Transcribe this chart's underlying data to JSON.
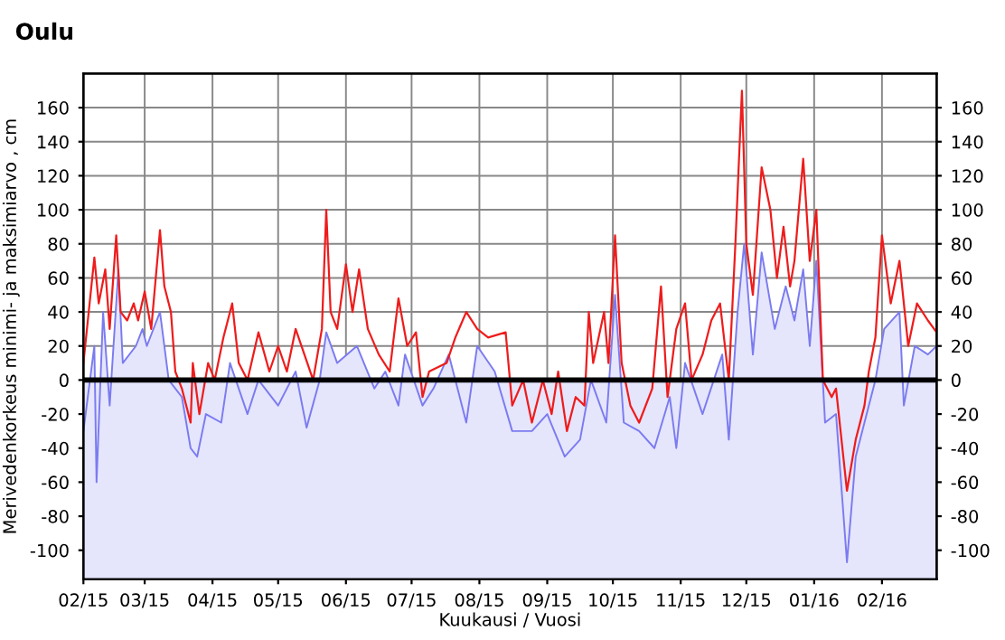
{
  "chart_data": {
    "type": "line",
    "title": "Oulu",
    "xlabel": "Kuukausi / Vuosi",
    "ylabel": "Merivedenkorkeus minimi- ja maksimiarvo , cm",
    "xlim": [
      "2015-02-01",
      "2016-02-26"
    ],
    "xticks": [
      {
        "value": "2015-02-01",
        "label": "02/15"
      },
      {
        "value": "2015-03-01",
        "label": "03/15"
      },
      {
        "value": "2015-04-01",
        "label": "04/15"
      },
      {
        "value": "2015-05-01",
        "label": "05/15"
      },
      {
        "value": "2015-06-01",
        "label": "06/15"
      },
      {
        "value": "2015-07-01",
        "label": "07/15"
      },
      {
        "value": "2015-08-01",
        "label": "08/15"
      },
      {
        "value": "2015-09-01",
        "label": "09/15"
      },
      {
        "value": "2015-10-01",
        "label": "10/15"
      },
      {
        "value": "2015-11-01",
        "label": "11/15"
      },
      {
        "value": "2015-12-01",
        "label": "12/15"
      },
      {
        "value": "2016-01-01",
        "label": "01/16"
      },
      {
        "value": "2016-02-01",
        "label": "02/16"
      }
    ],
    "ylim": [
      -117,
      180
    ],
    "yticks": [
      -100,
      -80,
      -60,
      -40,
      -20,
      0,
      20,
      40,
      60,
      80,
      100,
      120,
      140,
      160
    ],
    "y2lim": [
      -117,
      180
    ],
    "y2ticks": [
      -100,
      -80,
      -60,
      -40,
      -20,
      0,
      20,
      40,
      60,
      80,
      100,
      120,
      140,
      160
    ],
    "grid": true,
    "marker": "none",
    "line_style": "solid",
    "bands": [
      {
        "axis": "y",
        "from": -117,
        "to": 0,
        "label": null,
        "color": "#e5e5fc"
      }
    ],
    "ref_lines": [
      {
        "axis": "y",
        "value": 0,
        "label": null,
        "color": "#000000"
      }
    ],
    "series": [
      {
        "type": "area",
        "color": "#7b7bf0",
        "x": [
          "2015-02-01",
          "2015-02-04",
          "2015-02-06",
          "2015-02-07",
          "2015-02-10",
          "2015-02-13",
          "2015-02-17",
          "2015-02-19",
          "2015-02-25",
          "2015-02-28",
          "2015-03-02",
          "2015-03-08",
          "2015-03-12",
          "2015-03-18",
          "2015-03-22",
          "2015-03-25",
          "2015-03-29",
          "2015-04-05",
          "2015-04-09",
          "2015-04-17",
          "2015-04-22",
          "2015-05-01",
          "2015-05-09",
          "2015-05-14",
          "2015-05-20",
          "2015-05-23",
          "2015-05-28",
          "2015-06-06",
          "2015-06-14",
          "2015-06-19",
          "2015-06-25",
          "2015-06-28",
          "2015-07-06",
          "2015-07-11",
          "2015-07-18",
          "2015-07-26",
          "2015-07-31",
          "2015-08-08",
          "2015-08-16",
          "2015-08-25",
          "2015-09-01",
          "2015-09-09",
          "2015-09-16",
          "2015-09-21",
          "2015-09-28",
          "2015-10-02",
          "2015-10-06",
          "2015-10-13",
          "2015-10-20",
          "2015-10-27",
          "2015-10-30",
          "2015-11-03",
          "2015-11-11",
          "2015-11-20",
          "2015-11-23",
          "2015-11-27",
          "2015-11-30",
          "2015-12-04",
          "2015-12-08",
          "2015-12-14",
          "2015-12-19",
          "2015-12-23",
          "2015-12-27",
          "2015-12-30",
          "2016-01-02",
          "2016-01-06",
          "2016-01-11",
          "2016-01-16",
          "2016-01-20",
          "2016-01-24",
          "2016-01-29",
          "2016-02-02",
          "2016-02-09",
          "2016-02-11",
          "2016-02-16",
          "2016-02-22",
          "2016-02-26"
        ],
        "values": [
          -30,
          0,
          20,
          -60,
          40,
          -15,
          65,
          10,
          20,
          30,
          20,
          40,
          0,
          -10,
          -40,
          -45,
          -20,
          -25,
          10,
          -20,
          0,
          -15,
          5,
          -28,
          0,
          28,
          10,
          20,
          -5,
          5,
          -15,
          15,
          -15,
          -5,
          15,
          -25,
          20,
          5,
          -30,
          -30,
          -20,
          -45,
          -35,
          0,
          -25,
          50,
          -25,
          -30,
          -40,
          -10,
          -40,
          10,
          -20,
          15,
          -35,
          40,
          80,
          15,
          75,
          30,
          55,
          35,
          65,
          20,
          70,
          -25,
          -20,
          -107,
          -45,
          -25,
          0,
          30,
          40,
          -15,
          20,
          15,
          20
        ]
      },
      {
        "color": "#ee1c1c",
        "x": [
          "2015-02-01",
          "2015-02-06",
          "2015-02-08",
          "2015-02-11",
          "2015-02-13",
          "2015-02-16",
          "2015-02-18",
          "2015-02-21",
          "2015-02-24",
          "2015-02-26",
          "2015-03-01",
          "2015-03-04",
          "2015-03-08",
          "2015-03-10",
          "2015-03-13",
          "2015-03-15",
          "2015-03-18",
          "2015-03-22",
          "2015-03-23",
          "2015-03-26",
          "2015-03-30",
          "2015-04-02",
          "2015-04-06",
          "2015-04-10",
          "2015-04-13",
          "2015-04-17",
          "2015-04-22",
          "2015-04-27",
          "2015-05-01",
          "2015-05-05",
          "2015-05-09",
          "2015-05-13",
          "2015-05-17",
          "2015-05-21",
          "2015-05-23",
          "2015-05-25",
          "2015-05-28",
          "2015-06-01",
          "2015-06-04",
          "2015-06-07",
          "2015-06-11",
          "2015-06-16",
          "2015-06-21",
          "2015-06-25",
          "2015-06-29",
          "2015-07-03",
          "2015-07-06",
          "2015-07-09",
          "2015-07-17",
          "2015-07-21",
          "2015-07-26",
          "2015-07-31",
          "2015-08-05",
          "2015-08-13",
          "2015-08-16",
          "2015-08-21",
          "2015-08-25",
          "2015-08-30",
          "2015-09-03",
          "2015-09-06",
          "2015-09-10",
          "2015-09-14",
          "2015-09-18",
          "2015-09-20",
          "2015-09-22",
          "2015-09-27",
          "2015-09-29",
          "2015-10-02",
          "2015-10-05",
          "2015-10-09",
          "2015-10-13",
          "2015-10-19",
          "2015-10-23",
          "2015-10-26",
          "2015-10-30",
          "2015-11-03",
          "2015-11-06",
          "2015-11-11",
          "2015-11-15",
          "2015-11-19",
          "2015-11-23",
          "2015-11-26",
          "2015-11-29",
          "2015-12-01",
          "2015-12-04",
          "2015-12-08",
          "2015-12-12",
          "2015-12-15",
          "2015-12-18",
          "2015-12-21",
          "2015-12-23",
          "2015-12-27",
          "2015-12-30",
          "2016-01-02",
          "2016-01-05",
          "2016-01-09",
          "2016-01-11",
          "2016-01-16",
          "2016-01-20",
          "2016-01-24",
          "2016-01-26",
          "2016-01-29",
          "2016-02-01",
          "2016-02-05",
          "2016-02-09",
          "2016-02-13",
          "2016-02-17",
          "2016-02-22",
          "2016-02-26"
        ],
        "values": [
          10,
          72,
          45,
          65,
          30,
          85,
          40,
          35,
          45,
          35,
          52,
          30,
          88,
          55,
          40,
          5,
          -5,
          -25,
          10,
          -20,
          10,
          0,
          25,
          45,
          10,
          0,
          28,
          5,
          20,
          5,
          30,
          15,
          0,
          30,
          100,
          40,
          30,
          68,
          40,
          65,
          30,
          15,
          5,
          48,
          20,
          28,
          -10,
          5,
          10,
          25,
          40,
          30,
          25,
          28,
          -15,
          0,
          -25,
          0,
          -20,
          5,
          -30,
          -10,
          -15,
          40,
          10,
          40,
          10,
          85,
          10,
          -15,
          -25,
          -5,
          55,
          -10,
          30,
          45,
          0,
          15,
          35,
          45,
          0,
          80,
          170,
          80,
          50,
          125,
          100,
          60,
          90,
          55,
          70,
          130,
          70,
          100,
          0,
          -10,
          -5,
          -65,
          -35,
          -15,
          5,
          25,
          85,
          45,
          70,
          20,
          45,
          35,
          28
        ]
      }
    ]
  }
}
